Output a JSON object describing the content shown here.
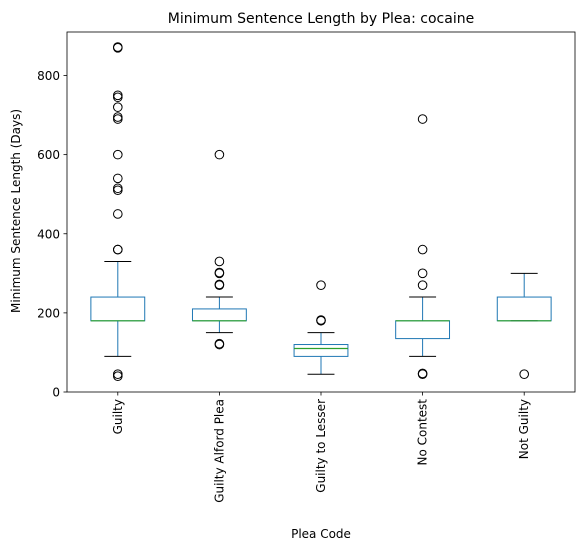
{
  "chart_data": {
    "type": "box",
    "title": "Minimum Sentence Length by Plea: cocaine",
    "xlabel": "Plea Code",
    "ylabel": "Minimum Sentence Length (Days)",
    "ylim": [
      0,
      910
    ],
    "yticks": [
      0,
      200,
      400,
      600,
      800
    ],
    "grid": false,
    "colors": {
      "box": "#1f77b4",
      "median": "#2ca02c",
      "whisker": "#000000",
      "flier": "#000000"
    },
    "categories": [
      "Guilty",
      "Guilty Alford Plea",
      "Guilty to Lesser",
      "No Contest",
      "Not Guilty"
    ],
    "boxes": [
      {
        "name": "Guilty",
        "whisker_low": 90,
        "q1": 180,
        "median": 180,
        "q3": 240,
        "whisker_high": 330,
        "fliers": [
          40,
          45,
          360,
          360,
          450,
          510,
          515,
          540,
          600,
          690,
          695,
          720,
          745,
          750,
          870,
          872
        ]
      },
      {
        "name": "Guilty Alford Plea",
        "whisker_low": 150,
        "q1": 180,
        "median": 180,
        "q3": 210,
        "whisker_high": 240,
        "fliers": [
          120,
          122,
          270,
          272,
          300,
          302,
          330,
          600
        ]
      },
      {
        "name": "Guilty to Lesser",
        "whisker_low": 45,
        "q1": 90,
        "median": 110,
        "q3": 120,
        "whisker_high": 150,
        "fliers": [
          180,
          182,
          270
        ]
      },
      {
        "name": "No Contest",
        "whisker_low": 90,
        "q1": 135,
        "median": 180,
        "q3": 180,
        "whisker_high": 240,
        "fliers": [
          45,
          47,
          270,
          300,
          360,
          690
        ]
      },
      {
        "name": "Not Guilty",
        "whisker_low": 180,
        "q1": 180,
        "median": 180,
        "q3": 240,
        "whisker_high": 300,
        "fliers": [
          45
        ]
      }
    ]
  }
}
